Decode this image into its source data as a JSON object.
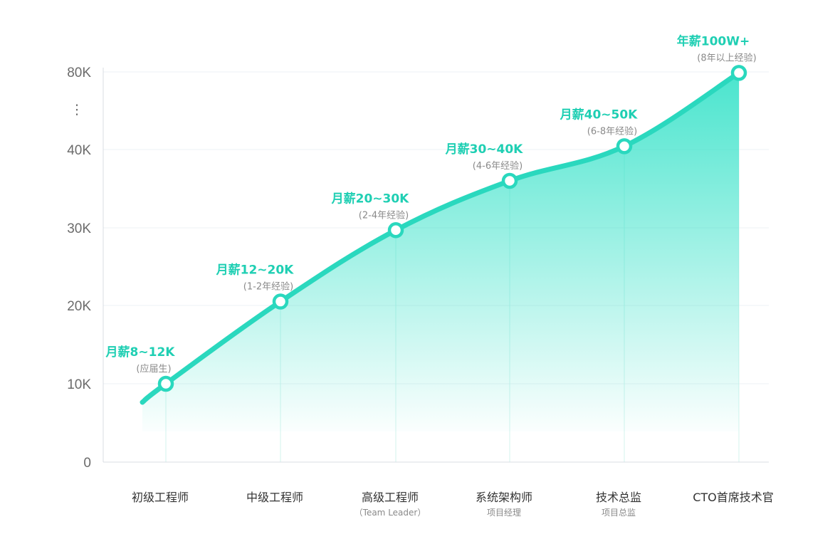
{
  "colors": {
    "accent": "#2ad8be",
    "accent_text": "#1fcfb3",
    "axis": "#d8dde3",
    "grid": "#eef1f4",
    "drop_line": "#d3f3ee",
    "fill_top": "#2ae0c5"
  },
  "chart_data": {
    "type": "area",
    "title": "",
    "xlabel": "",
    "ylabel": "",
    "ylim": [
      0,
      80
    ],
    "grid": true,
    "y_ticks": [
      {
        "value": 0,
        "label": "0"
      },
      {
        "value": 10,
        "label": "10K"
      },
      {
        "value": 20,
        "label": "20K"
      },
      {
        "value": 30,
        "label": "30K"
      },
      {
        "value": 40,
        "label": "40K"
      },
      {
        "value": 80,
        "label": "80K"
      }
    ],
    "y_break_symbol": "⋮",
    "categories": [
      {
        "label": "初级工程师",
        "sub": ""
      },
      {
        "label": "中级工程师",
        "sub": ""
      },
      {
        "label": "高级工程师",
        "sub": "（Team Leader）"
      },
      {
        "label": "系统架构师",
        "sub": "项目经理"
      },
      {
        "label": "技术总监",
        "sub": "项目总监"
      },
      {
        "label": "CTO首席技术官",
        "sub": ""
      }
    ],
    "series": [
      {
        "values": [
          10,
          20.5,
          29.7,
          36,
          41.7,
          79.5
        ]
      }
    ],
    "annotations": [
      {
        "main": "月薪8~12K",
        "sub": "(应届生)"
      },
      {
        "main": "月薪12~20K",
        "sub": "(1-2年经验)"
      },
      {
        "main": "月薪20~30K",
        "sub": "(2-4年经验)"
      },
      {
        "main": "月薪30~40K",
        "sub": "(4-6年经验)"
      },
      {
        "main": "月薪40~50K",
        "sub": "(6-8年经验)"
      },
      {
        "main": "年薪100W+",
        "sub": "(8年以上经验)"
      }
    ]
  }
}
